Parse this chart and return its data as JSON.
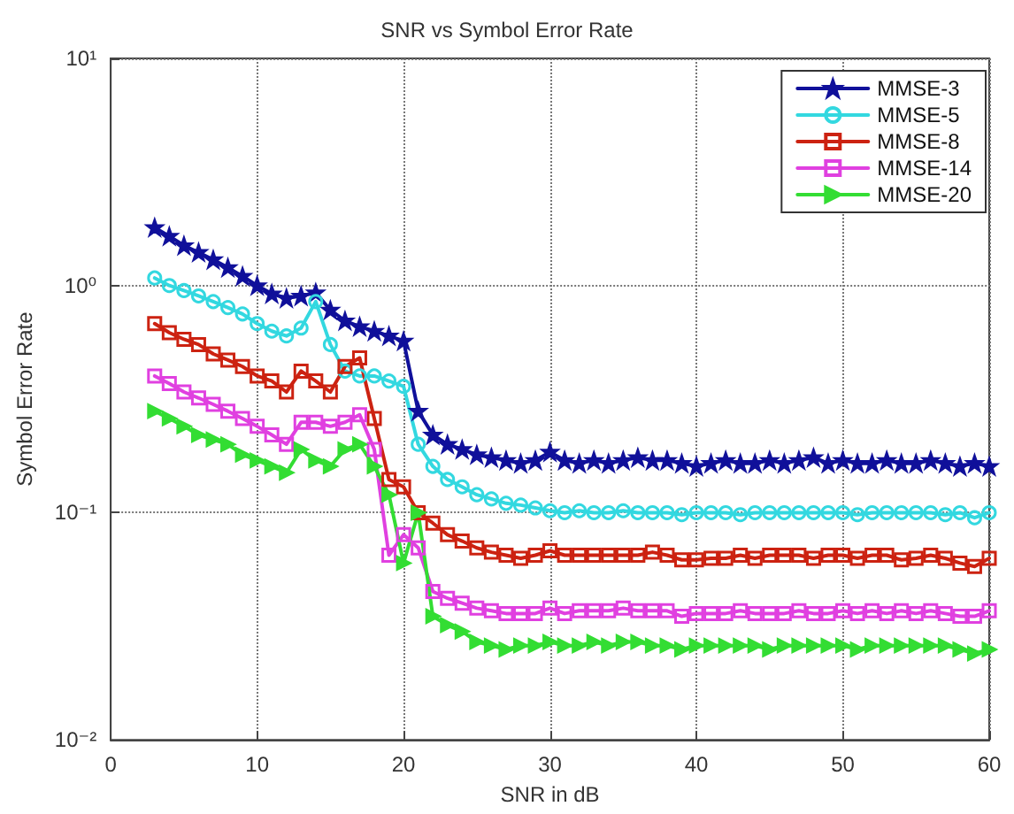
{
  "chart_data": {
    "type": "line",
    "title": "SNR vs Symbol Error Rate",
    "xlabel": "SNR in dB",
    "ylabel": "Symbol Error Rate",
    "x": [
      3,
      4,
      5,
      6,
      7,
      8,
      9,
      10,
      11,
      12,
      13,
      14,
      15,
      16,
      17,
      18,
      19,
      20,
      21,
      22,
      23,
      24,
      25,
      26,
      27,
      28,
      29,
      30,
      31,
      32,
      33,
      34,
      35,
      36,
      37,
      38,
      39,
      40,
      41,
      42,
      43,
      44,
      45,
      46,
      47,
      48,
      49,
      50,
      51,
      52,
      53,
      54,
      55,
      56,
      57,
      58,
      59,
      60
    ],
    "series": [
      {
        "name": "MMSE-3",
        "color": "#10109a",
        "marker": "star",
        "values": [
          1.8,
          1.65,
          1.5,
          1.4,
          1.3,
          1.2,
          1.1,
          1.0,
          0.92,
          0.88,
          0.9,
          0.93,
          0.78,
          0.7,
          0.66,
          0.63,
          0.6,
          0.57,
          0.28,
          0.22,
          0.2,
          0.19,
          0.18,
          0.175,
          0.17,
          0.165,
          0.17,
          0.185,
          0.17,
          0.165,
          0.17,
          0.165,
          0.17,
          0.175,
          0.17,
          0.17,
          0.165,
          0.16,
          0.165,
          0.17,
          0.165,
          0.165,
          0.17,
          0.165,
          0.17,
          0.175,
          0.165,
          0.17,
          0.165,
          0.165,
          0.17,
          0.165,
          0.165,
          0.17,
          0.165,
          0.16,
          0.165,
          0.16
        ]
      },
      {
        "name": "MMSE-5",
        "color": "#33d8e0",
        "marker": "circle",
        "values": [
          1.08,
          1.0,
          0.95,
          0.9,
          0.85,
          0.8,
          0.75,
          0.68,
          0.63,
          0.6,
          0.65,
          0.85,
          0.55,
          0.42,
          0.4,
          0.4,
          0.38,
          0.36,
          0.2,
          0.16,
          0.14,
          0.13,
          0.12,
          0.115,
          0.11,
          0.108,
          0.105,
          0.102,
          0.1,
          0.102,
          0.1,
          0.1,
          0.102,
          0.1,
          0.1,
          0.1,
          0.098,
          0.1,
          0.1,
          0.1,
          0.098,
          0.1,
          0.1,
          0.1,
          0.1,
          0.1,
          0.1,
          0.1,
          0.098,
          0.1,
          0.1,
          0.1,
          0.1,
          0.1,
          0.098,
          0.1,
          0.095,
          0.1
        ]
      },
      {
        "name": "MMSE-8",
        "color": "#cc2211",
        "marker": "square",
        "values": [
          0.68,
          0.62,
          0.58,
          0.55,
          0.5,
          0.47,
          0.44,
          0.4,
          0.38,
          0.34,
          0.42,
          0.38,
          0.34,
          0.44,
          0.48,
          0.26,
          0.14,
          0.13,
          0.1,
          0.09,
          0.08,
          0.075,
          0.07,
          0.067,
          0.065,
          0.063,
          0.065,
          0.068,
          0.065,
          0.065,
          0.065,
          0.065,
          0.065,
          0.065,
          0.067,
          0.065,
          0.062,
          0.062,
          0.063,
          0.063,
          0.065,
          0.063,
          0.065,
          0.065,
          0.065,
          0.063,
          0.065,
          0.065,
          0.063,
          0.065,
          0.065,
          0.062,
          0.063,
          0.065,
          0.063,
          0.06,
          0.058,
          0.063
        ]
      },
      {
        "name": "MMSE-14",
        "color": "#e040e0",
        "marker": "square",
        "values": [
          0.4,
          0.37,
          0.34,
          0.32,
          0.3,
          0.28,
          0.26,
          0.24,
          0.22,
          0.2,
          0.25,
          0.25,
          0.24,
          0.25,
          0.27,
          0.19,
          0.065,
          0.08,
          0.07,
          0.045,
          0.042,
          0.04,
          0.038,
          0.037,
          0.036,
          0.036,
          0.036,
          0.038,
          0.036,
          0.037,
          0.037,
          0.037,
          0.038,
          0.037,
          0.037,
          0.037,
          0.035,
          0.036,
          0.036,
          0.036,
          0.037,
          0.036,
          0.036,
          0.036,
          0.037,
          0.036,
          0.036,
          0.037,
          0.036,
          0.037,
          0.036,
          0.037,
          0.036,
          0.037,
          0.036,
          0.035,
          0.035,
          0.037
        ]
      },
      {
        "name": "MMSE-20",
        "color": "#33dd33",
        "marker": "triangle",
        "values": [
          0.28,
          0.26,
          0.24,
          0.22,
          0.21,
          0.2,
          0.18,
          0.17,
          0.16,
          0.15,
          0.19,
          0.17,
          0.16,
          0.19,
          0.2,
          0.16,
          0.12,
          0.06,
          0.1,
          0.035,
          0.032,
          0.03,
          0.027,
          0.026,
          0.025,
          0.026,
          0.026,
          0.027,
          0.026,
          0.026,
          0.027,
          0.026,
          0.027,
          0.027,
          0.026,
          0.026,
          0.025,
          0.026,
          0.026,
          0.026,
          0.026,
          0.026,
          0.025,
          0.026,
          0.026,
          0.026,
          0.026,
          0.026,
          0.025,
          0.026,
          0.026,
          0.026,
          0.026,
          0.026,
          0.026,
          0.025,
          0.024,
          0.025
        ]
      }
    ],
    "log": "y",
    "xlim": [
      0,
      60
    ],
    "xticks": [
      0,
      10,
      20,
      30,
      40,
      50,
      60
    ],
    "ylim": [
      0.01,
      10
    ],
    "yticks": [
      {
        "value": 0.01,
        "label": "10⁻²"
      },
      {
        "value": 0.1,
        "label": "10⁻¹"
      },
      {
        "value": 1,
        "label": "10⁰"
      },
      {
        "value": 10,
        "label": "10¹"
      }
    ],
    "grid": true,
    "legend": "top right",
    "line_style": "solid"
  }
}
